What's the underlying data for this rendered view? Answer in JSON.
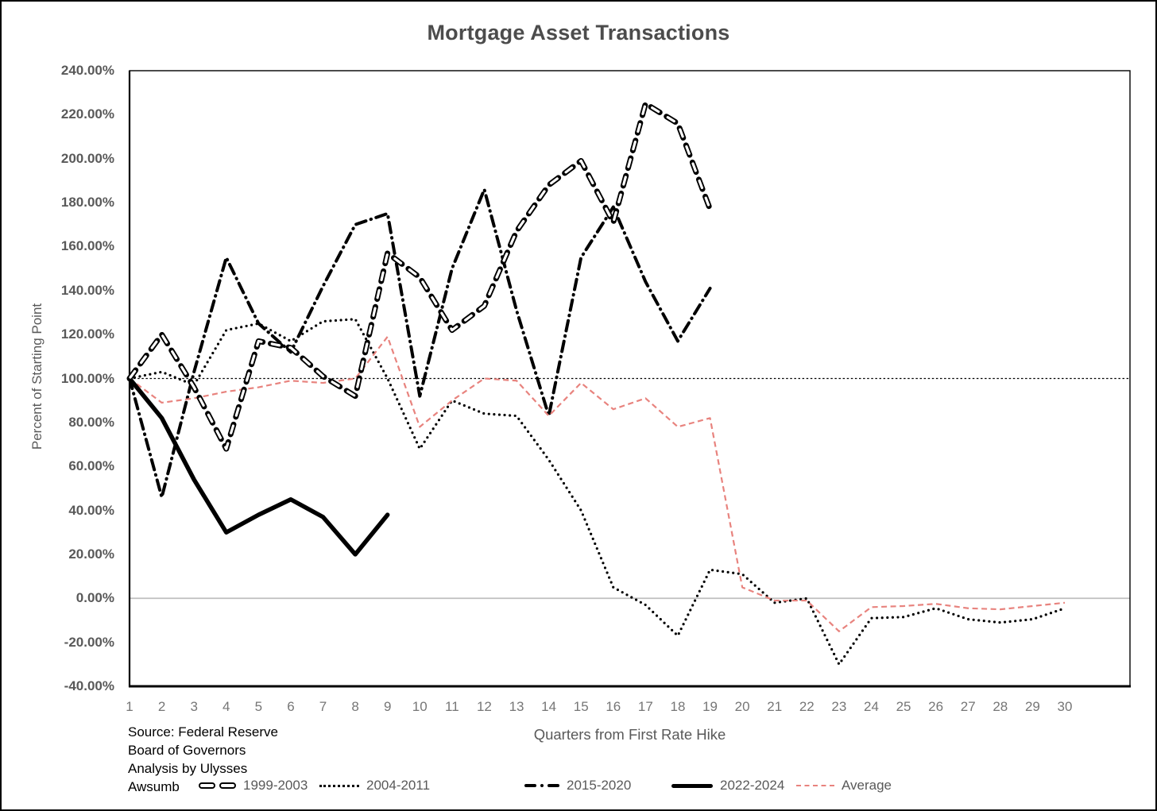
{
  "title": "Mortgage Asset Transactions",
  "source_lines": [
    "Source: Federal Reserve",
    "Board of Governors",
    "Analysis by Ulysses",
    "Awsumb"
  ],
  "axes": {
    "x_title": "Quarters from First Rate Hike",
    "y_title": "Percent of Starting Point",
    "y_tick_labels": [
      "240.00%",
      "220.00%",
      "200.00%",
      "180.00%",
      "160.00%",
      "140.00%",
      "120.00%",
      "100.00%",
      "80.00%",
      "60.00%",
      "40.00%",
      "20.00%",
      "0.00%",
      "-20.00%",
      "-40.00%"
    ],
    "x_tick_labels": [
      "1",
      "2",
      "3",
      "4",
      "5",
      "6",
      "7",
      "8",
      "9",
      "10",
      "11",
      "12",
      "13",
      "14",
      "15",
      "16",
      "17",
      "18",
      "19",
      "20",
      "21",
      "22",
      "23",
      "24",
      "25",
      "26",
      "27",
      "28",
      "29",
      "30"
    ]
  },
  "colors": {
    "black_series": "#000000",
    "average_series": "#e8837e",
    "zero_line": "#bfbfbf",
    "reference_line": "#000000",
    "axis_text": "#595959",
    "title_text": "#4c4c4c"
  },
  "chart_data": {
    "type": "line",
    "title": "Mortgage Asset Transactions",
    "xlabel": "Quarters from First Rate Hike",
    "ylabel": "Percent of Starting Point",
    "x": [
      1,
      2,
      3,
      4,
      5,
      6,
      7,
      8,
      9,
      10,
      11,
      12,
      13,
      14,
      15,
      16,
      17,
      18,
      19,
      20,
      21,
      22,
      23,
      24,
      25,
      26,
      27,
      28,
      29,
      30
    ],
    "ylim": [
      -40,
      240
    ],
    "ytick_step_pct": 20,
    "grid": "off",
    "reference_lines": [
      {
        "value_pct": 100,
        "style": "dotted-black"
      },
      {
        "value_pct": 0,
        "style": "solid-gray"
      }
    ],
    "legend_position": "bottom",
    "units": "percent of starting point",
    "series": [
      {
        "name": "1999-2003",
        "style": "outlined-dash",
        "color": "#000000",
        "values": [
          100,
          120,
          96,
          68,
          117,
          114,
          101,
          92,
          157,
          146,
          122,
          133,
          167,
          188,
          199,
          171,
          225,
          216,
          177
        ]
      },
      {
        "name": "2004-2011",
        "style": "dotted",
        "color": "#000000",
        "values": [
          100,
          103,
          97,
          122,
          125,
          117,
          126,
          127,
          100,
          68,
          90,
          84,
          83,
          63,
          40,
          5,
          -3,
          -17,
          13,
          11,
          -2,
          0,
          -30,
          -9,
          -8.5,
          -4.5,
          -9.5,
          -11,
          -9.5,
          -4.5
        ]
      },
      {
        "name": "2015-2020",
        "style": "dash-dot",
        "color": "#000000",
        "values": [
          100,
          46,
          103,
          155,
          125,
          112,
          142,
          170,
          175,
          92,
          150,
          186,
          131,
          83,
          155,
          178,
          144,
          117,
          141
        ]
      },
      {
        "name": "2022-2024",
        "style": "solid-thick",
        "color": "#000000",
        "values": [
          100,
          82,
          54,
          30,
          38,
          45,
          37,
          20,
          38
        ]
      },
      {
        "name": "Average",
        "style": "dashed",
        "color": "#e8837e",
        "values": [
          100,
          89,
          91,
          94,
          96,
          99,
          98,
          100,
          119,
          78,
          90,
          100,
          99,
          83,
          98,
          86,
          91,
          78,
          82,
          5,
          -1,
          -1,
          -15,
          -4,
          -3.5,
          -2.5,
          -4.5,
          -5,
          -3.5,
          -2
        ]
      }
    ]
  }
}
